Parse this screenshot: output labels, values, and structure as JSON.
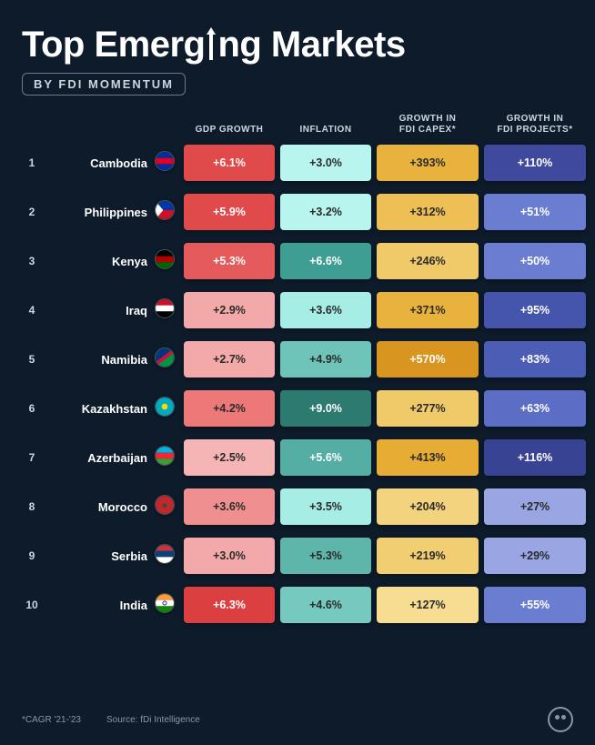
{
  "title_pre": "Top Emerg",
  "title_post": "ng Markets",
  "subtitle": "BY FDI MOMENTUM",
  "columns": {
    "gdp": "GDP GROWTH",
    "inflation": "INFLATION",
    "capex": "GROWTH IN\nFDI CAPEX*",
    "projects": "GROWTH IN\nFDI PROJECTS*"
  },
  "text_colors": {
    "light": "#ffffff",
    "dark": "#2a2a2a"
  },
  "rows": [
    {
      "rank": "1",
      "country": "Cambodia",
      "flag": {
        "type": "hstripes",
        "colors": [
          "#032ea1",
          "#e00025",
          "#032ea1"
        ]
      },
      "gdp": {
        "value": "+6.1%",
        "bg": "#e04a4a",
        "fg": "light"
      },
      "inflation": {
        "value": "+3.0%",
        "bg": "#b9f5ef",
        "fg": "dark"
      },
      "capex": {
        "value": "+393%",
        "bg": "#e9b23d",
        "fg": "dark"
      },
      "projects": {
        "value": "+110%",
        "bg": "#3f4a9e",
        "fg": "light"
      }
    },
    {
      "rank": "2",
      "country": "Philippines",
      "flag": {
        "type": "hstripes",
        "colors": [
          "#0038a8",
          "#ce1126"
        ],
        "triangle": "#ffffff"
      },
      "gdp": {
        "value": "+5.9%",
        "bg": "#e04a4a",
        "fg": "light"
      },
      "inflation": {
        "value": "+3.2%",
        "bg": "#b9f5ef",
        "fg": "dark"
      },
      "capex": {
        "value": "+312%",
        "bg": "#edbf55",
        "fg": "dark"
      },
      "projects": {
        "value": "+51%",
        "bg": "#6b7dd0",
        "fg": "light"
      }
    },
    {
      "rank": "3",
      "country": "Kenya",
      "flag": {
        "type": "hstripes",
        "colors": [
          "#000000",
          "#b00000",
          "#006600"
        ]
      },
      "gdp": {
        "value": "+5.3%",
        "bg": "#e55a5a",
        "fg": "light"
      },
      "inflation": {
        "value": "+6.6%",
        "bg": "#3f9e93",
        "fg": "light"
      },
      "capex": {
        "value": "+246%",
        "bg": "#f0c968",
        "fg": "dark"
      },
      "projects": {
        "value": "+50%",
        "bg": "#6b7dd0",
        "fg": "light"
      }
    },
    {
      "rank": "4",
      "country": "Iraq",
      "flag": {
        "type": "hstripes",
        "colors": [
          "#ce1126",
          "#ffffff",
          "#000000"
        ]
      },
      "gdp": {
        "value": "+2.9%",
        "bg": "#f3a9a9",
        "fg": "dark"
      },
      "inflation": {
        "value": "+3.6%",
        "bg": "#a6ede5",
        "fg": "dark"
      },
      "capex": {
        "value": "+371%",
        "bg": "#e9b23d",
        "fg": "dark"
      },
      "projects": {
        "value": "+95%",
        "bg": "#4455ab",
        "fg": "light"
      }
    },
    {
      "rank": "5",
      "country": "Namibia",
      "flag": {
        "type": "diag",
        "colors": [
          "#003580",
          "#d21034",
          "#009543"
        ]
      },
      "gdp": {
        "value": "+2.7%",
        "bg": "#f3a9a9",
        "fg": "dark"
      },
      "inflation": {
        "value": "+4.9%",
        "bg": "#6fc4ba",
        "fg": "dark"
      },
      "capex": {
        "value": "+570%",
        "bg": "#d8951f",
        "fg": "light"
      },
      "projects": {
        "value": "+83%",
        "bg": "#4c5db5",
        "fg": "light"
      }
    },
    {
      "rank": "6",
      "country": "Kazakhstan",
      "flag": {
        "type": "solid",
        "colors": [
          "#00abc2"
        ],
        "sun": "#ffd700"
      },
      "gdp": {
        "value": "+4.2%",
        "bg": "#ec7878",
        "fg": "dark"
      },
      "inflation": {
        "value": "+9.0%",
        "bg": "#2d7a70",
        "fg": "light"
      },
      "capex": {
        "value": "+277%",
        "bg": "#f0c968",
        "fg": "dark"
      },
      "projects": {
        "value": "+63%",
        "bg": "#5c6dc5",
        "fg": "light"
      }
    },
    {
      "rank": "7",
      "country": "Azerbaijan",
      "flag": {
        "type": "hstripes",
        "colors": [
          "#00b5e2",
          "#ed2939",
          "#3f9c35"
        ]
      },
      "gdp": {
        "value": "+2.5%",
        "bg": "#f5b5b5",
        "fg": "dark"
      },
      "inflation": {
        "value": "+5.6%",
        "bg": "#55aea3",
        "fg": "light"
      },
      "capex": {
        "value": "+413%",
        "bg": "#e6ac33",
        "fg": "dark"
      },
      "projects": {
        "value": "+116%",
        "bg": "#384394",
        "fg": "light"
      }
    },
    {
      "rank": "8",
      "country": "Morocco",
      "flag": {
        "type": "solid",
        "colors": [
          "#c1272d"
        ],
        "star": "#006233"
      },
      "gdp": {
        "value": "+3.6%",
        "bg": "#ef8f8f",
        "fg": "dark"
      },
      "inflation": {
        "value": "+3.5%",
        "bg": "#a6ede5",
        "fg": "dark"
      },
      "capex": {
        "value": "+204%",
        "bg": "#f3d37e",
        "fg": "dark"
      },
      "projects": {
        "value": "+27%",
        "bg": "#99a6e3",
        "fg": "dark"
      }
    },
    {
      "rank": "9",
      "country": "Serbia",
      "flag": {
        "type": "hstripes",
        "colors": [
          "#c6363c",
          "#0c4076",
          "#ffffff"
        ]
      },
      "gdp": {
        "value": "+3.0%",
        "bg": "#f3a9a9",
        "fg": "dark"
      },
      "inflation": {
        "value": "+5.3%",
        "bg": "#5eb5aa",
        "fg": "dark"
      },
      "capex": {
        "value": "+219%",
        "bg": "#f2ce73",
        "fg": "dark"
      },
      "projects": {
        "value": "+29%",
        "bg": "#99a6e3",
        "fg": "dark"
      }
    },
    {
      "rank": "10",
      "country": "India",
      "flag": {
        "type": "hstripes",
        "colors": [
          "#ff9933",
          "#ffffff",
          "#138808"
        ],
        "chakra": "#000080"
      },
      "gdp": {
        "value": "+6.3%",
        "bg": "#dc3f3f",
        "fg": "light"
      },
      "inflation": {
        "value": "+4.6%",
        "bg": "#75c9bf",
        "fg": "dark"
      },
      "capex": {
        "value": "+127%",
        "bg": "#f6dd92",
        "fg": "dark"
      },
      "projects": {
        "value": "+55%",
        "bg": "#6b7dd0",
        "fg": "light"
      }
    }
  ],
  "footnote": "*CAGR '21-'23",
  "source": "Source: fDi Intelligence"
}
